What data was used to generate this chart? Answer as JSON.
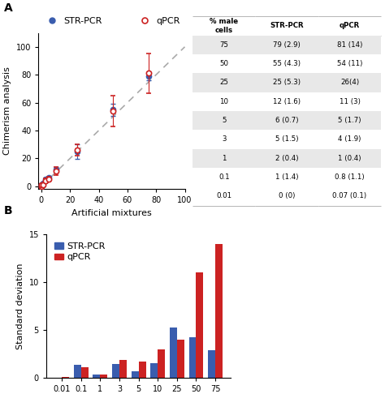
{
  "scatter": {
    "x_vals": [
      0.01,
      0.1,
      1,
      3,
      5,
      10,
      25,
      50,
      75
    ],
    "str_pcr_y": [
      0,
      1,
      2,
      5,
      6,
      12,
      25,
      55,
      79
    ],
    "str_pcr_err": [
      0,
      1.4,
      0.4,
      1.5,
      0.7,
      1.6,
      5.3,
      4.3,
      2.9
    ],
    "qpcr_y": [
      0.07,
      0.8,
      1,
      4,
      5,
      11,
      26,
      54,
      81
    ],
    "qpcr_err": [
      0.1,
      1.1,
      0.4,
      1.9,
      1.7,
      3,
      4,
      11,
      14
    ],
    "str_color": "#3a5dae",
    "qpcr_color": "#cc2222",
    "dashed_line_color": "#aaaaaa",
    "xlabel": "Artificial mixtures",
    "ylabel": "Chimerism analysis",
    "xlim": [
      -2,
      100
    ],
    "ylim": [
      -2,
      110
    ],
    "xticks": [
      0,
      20,
      40,
      60,
      80,
      100
    ],
    "yticks": [
      0,
      20,
      40,
      60,
      80,
      100
    ]
  },
  "table": {
    "col_headers": [
      "% male\ncells",
      "STR-PCR",
      "qPCR"
    ],
    "rows": [
      [
        "75",
        "79 (2.9)",
        "81 (14)"
      ],
      [
        "50",
        "55 (4.3)",
        "54 (11)"
      ],
      [
        "25",
        "25 (5.3)",
        "26(4)"
      ],
      [
        "10",
        "12 (1.6)",
        "11 (3)"
      ],
      [
        "5",
        "6 (0.7)",
        "5 (1.7)"
      ],
      [
        "3",
        "5 (1.5)",
        "4 (1.9)"
      ],
      [
        "1",
        "2 (0.4)",
        "1 (0.4)"
      ],
      [
        "0.1",
        "1 (1.4)",
        "0.8 (1.1)"
      ],
      [
        "0.01",
        "0 (0)",
        "0.07 (0.1)"
      ]
    ],
    "shaded_rows": [
      0,
      2,
      4,
      6,
      8
    ],
    "shade_color": "#e8e8e8",
    "header_color": "#ffffff",
    "border_color": "#999999"
  },
  "bar": {
    "categories": [
      "0.01",
      "0.1",
      "1",
      "3",
      "5",
      "10",
      "25",
      "50",
      "75"
    ],
    "str_pcr_vals": [
      0,
      1.4,
      0.4,
      1.5,
      0.7,
      1.6,
      5.3,
      4.3,
      2.9
    ],
    "qpcr_vals": [
      0.1,
      1.1,
      0.4,
      1.9,
      1.7,
      3.0,
      4.0,
      11.0,
      14.0
    ],
    "str_color": "#3a5dae",
    "qpcr_color": "#cc2222",
    "ylabel": "Standard deviation",
    "ylim": [
      0,
      15
    ],
    "yticks": [
      0,
      5,
      10,
      15
    ]
  },
  "panel_label_fontsize": 10,
  "axis_fontsize": 8,
  "tick_fontsize": 7,
  "legend_fontsize": 8
}
